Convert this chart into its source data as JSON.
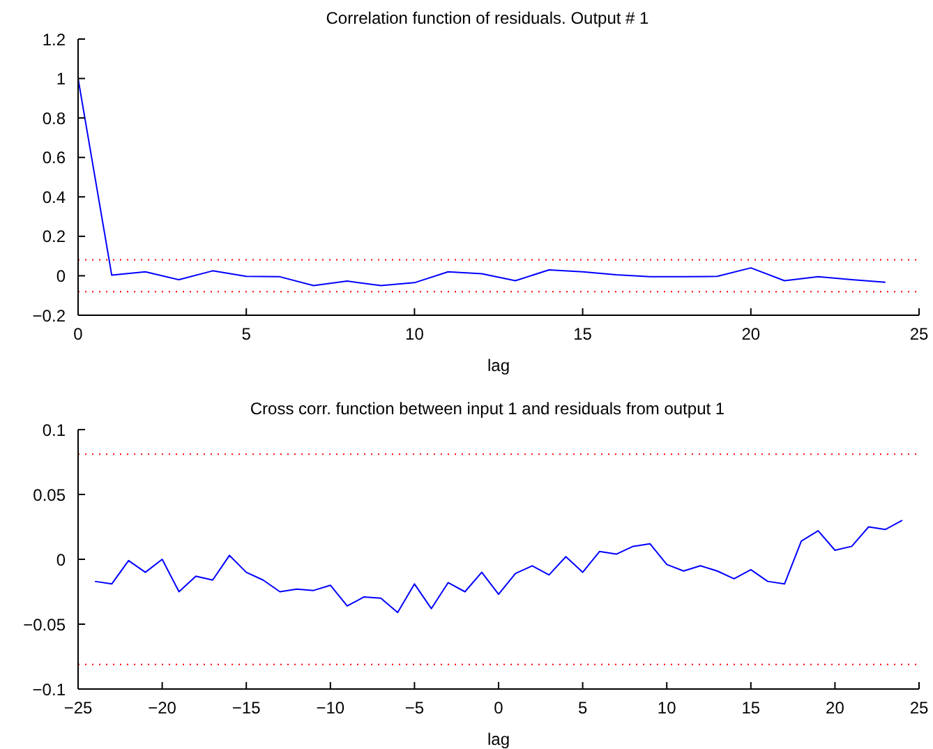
{
  "chart_data": [
    {
      "type": "line",
      "title": "Correlation function of residuals. Output # 1",
      "xlabel": "lag",
      "x": [
        0,
        1,
        2,
        3,
        4,
        5,
        6,
        7,
        8,
        9,
        10,
        11,
        12,
        13,
        14,
        15,
        16,
        17,
        18,
        19,
        20,
        21,
        22,
        23,
        24
      ],
      "series": [
        {
          "color": "#0000ff",
          "values": [
            1,
            0.003,
            0.02,
            -0.02,
            0.025,
            -0.003,
            -0.005,
            -0.05,
            -0.027,
            -0.05,
            -0.035,
            0.02,
            0.01,
            -0.025,
            0.03,
            0.02,
            0.005,
            -0.005,
            -0.005,
            -0.003,
            0.04,
            -0.025,
            -0.005,
            -0.02,
            -0.033
          ]
        }
      ],
      "xlim": [
        0,
        25
      ],
      "xticks": [
        0,
        5,
        10,
        15,
        20,
        25
      ],
      "ylim": [
        -0.2,
        1.2
      ],
      "yticks": [
        {
          "value": -0.2,
          "label": "−0.2"
        },
        0,
        0.2,
        0.4,
        0.6,
        0.8,
        1,
        1.2
      ],
      "grid": false,
      "legend": false,
      "marker": "none",
      "line_style": "solid",
      "ref_lines": [
        {
          "axis": "y",
          "value": 0.081,
          "color": "#ff0000",
          "line_style": "dotted"
        },
        {
          "axis": "y",
          "value": -0.081,
          "color": "#ff0000",
          "line_style": "dotted"
        }
      ]
    },
    {
      "type": "line",
      "title": "Cross corr. function between input 1 and residuals from output 1",
      "xlabel": "lag",
      "x": [
        -24,
        -23,
        -22,
        -21,
        -20,
        -19,
        -18,
        -17,
        -16,
        -15,
        -14,
        -13,
        -12,
        -11,
        -10,
        -9,
        -8,
        -7,
        -6,
        -5,
        -4,
        -3,
        -2,
        -1,
        0,
        1,
        2,
        3,
        4,
        5,
        6,
        7,
        8,
        9,
        10,
        11,
        12,
        13,
        14,
        15,
        16,
        17,
        18,
        19,
        20,
        21,
        22,
        23,
        24
      ],
      "series": [
        {
          "color": "#0000ff",
          "values": [
            -0.017,
            -0.019,
            -0.001,
            -0.01,
            0,
            -0.025,
            -0.013,
            -0.016,
            0.003,
            -0.01,
            -0.016,
            -0.025,
            -0.023,
            -0.024,
            -0.02,
            -0.036,
            -0.029,
            -0.03,
            -0.041,
            -0.019,
            -0.038,
            -0.018,
            -0.025,
            -0.01,
            -0.027,
            -0.011,
            -0.005,
            -0.012,
            0.002,
            -0.01,
            0.006,
            0.004,
            0.01,
            0.012,
            -0.004,
            -0.009,
            -0.005,
            -0.009,
            -0.015,
            -0.008,
            -0.017,
            -0.019,
            0.014,
            0.022,
            0.007,
            0.01,
            0.025,
            0.023,
            0.03
          ]
        }
      ],
      "xlim": [
        -25,
        25
      ],
      "xticks": [
        {
          "value": -25,
          "label": "−25"
        },
        {
          "value": -20,
          "label": "−20"
        },
        {
          "value": -15,
          "label": "−15"
        },
        {
          "value": -10,
          "label": "−10"
        },
        {
          "value": -5,
          "label": "−5"
        },
        0,
        5,
        10,
        15,
        20,
        25
      ],
      "ylim": [
        -0.1,
        0.1
      ],
      "yticks": [
        {
          "value": -0.1,
          "label": "−0.1"
        },
        {
          "value": -0.05,
          "label": "−0.05"
        },
        0,
        0.05,
        0.1
      ],
      "grid": false,
      "legend": false,
      "marker": "none",
      "line_style": "solid",
      "ref_lines": [
        {
          "axis": "y",
          "value": 0.081,
          "color": "#ff0000",
          "line_style": "dotted"
        },
        {
          "axis": "y",
          "value": -0.081,
          "color": "#ff0000",
          "line_style": "dotted"
        }
      ]
    }
  ]
}
